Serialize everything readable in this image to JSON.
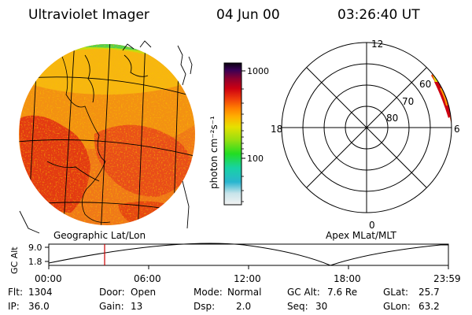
{
  "header": {
    "instrument": "Ultraviolet Imager",
    "date": "04 Jun 00",
    "time": "03:26:40 UT"
  },
  "left_panel": {
    "caption": "Geographic Lat/Lon"
  },
  "colorbar": {
    "title": "photon cm⁻²s⁻¹",
    "ticks": [
      "1000",
      "100"
    ],
    "tick_values": [
      1000,
      100
    ],
    "range": [
      10,
      1300
    ],
    "scale": "log",
    "colors": [
      "#f2f2f2",
      "#c8e4ea",
      "#29b5cf",
      "#18d2a4",
      "#22dd22",
      "#9adf10",
      "#e6e000",
      "#ff9a00",
      "#ee3a0b",
      "#cd0011",
      "#8c0030",
      "#3a0055",
      "#0a0010"
    ]
  },
  "right_panel": {
    "caption": "Apex MLat/MLT",
    "mlt_labels": {
      "top": "12",
      "left": "18",
      "right": "6",
      "bottom": "0"
    },
    "lat_labels": [
      "80",
      "70",
      "60"
    ]
  },
  "altitude_plot": {
    "ylabel": "GC Alt",
    "yticks": [
      "9.0",
      "1.8"
    ],
    "xticks": [
      "00:00",
      "06:00",
      "12:00",
      "18:00",
      "23:59"
    ],
    "current_time": "03:26:40",
    "marker_color": "#cc0000",
    "line_color": "#000000"
  },
  "status": {
    "flt_label": "Flt:",
    "flt_value": "1304",
    "ip_label": "IP:",
    "ip_value": "36.0",
    "door_label": "Door:",
    "door_value": "Open",
    "gain_label": "Gain:",
    "gain_value": "13",
    "mode_label": "Mode:",
    "mode_value": "Normal",
    "dsp_label": "Dsp:",
    "dsp_value": "2.0",
    "gcalt_label": "GC Alt:",
    "gcalt_value": "7.6 Re",
    "seq_label": "Seq:",
    "seq_value": "30",
    "glat_label": "GLat:",
    "glat_value": "25.7",
    "glon_label": "GLon:",
    "glon_value": "63.2"
  }
}
